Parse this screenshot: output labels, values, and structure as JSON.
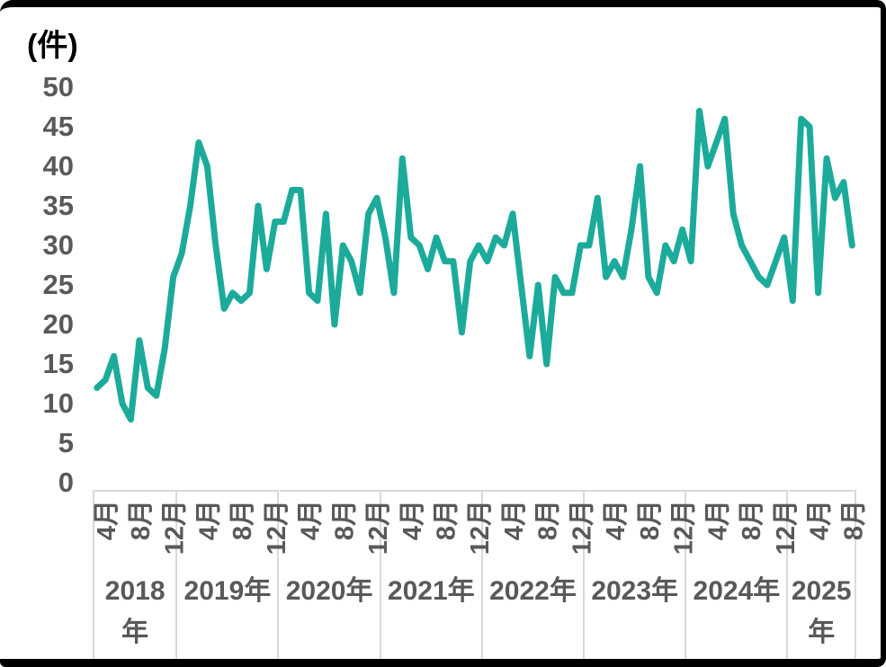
{
  "chart_data": {
    "type": "line",
    "title": "",
    "unit_label": "(件)",
    "legend": "none",
    "grid": "off",
    "y_axis": {
      "min": 0,
      "max": 50,
      "ticks": [
        0,
        5,
        10,
        15,
        20,
        25,
        30,
        35,
        40,
        45,
        50
      ]
    },
    "x_axis": {
      "interval": "monthly",
      "start": "2018年3月",
      "end": "2025年8月",
      "month_tick_labels": [
        {
          "label": "4月",
          "index": 1
        },
        {
          "label": "8月",
          "index": 5
        },
        {
          "label": "12月",
          "index": 9
        },
        {
          "label": "4月",
          "index": 13
        },
        {
          "label": "8月",
          "index": 17
        },
        {
          "label": "12月",
          "index": 21
        },
        {
          "label": "4月",
          "index": 25
        },
        {
          "label": "8月",
          "index": 29
        },
        {
          "label": "12月",
          "index": 33
        },
        {
          "label": "4月",
          "index": 37
        },
        {
          "label": "8月",
          "index": 41
        },
        {
          "label": "12月",
          "index": 45
        },
        {
          "label": "4月",
          "index": 49
        },
        {
          "label": "8月",
          "index": 53
        },
        {
          "label": "12月",
          "index": 57
        },
        {
          "label": "4月",
          "index": 61
        },
        {
          "label": "8月",
          "index": 65
        },
        {
          "label": "12月",
          "index": 69
        },
        {
          "label": "4月",
          "index": 73
        },
        {
          "label": "8月",
          "index": 77
        },
        {
          "label": "12月",
          "index": 81
        },
        {
          "label": "4月",
          "index": 85
        },
        {
          "label": "8月",
          "index": 89
        }
      ],
      "year_groups": [
        {
          "lines": [
            "2018",
            "年"
          ],
          "months": 10
        },
        {
          "lines": [
            "2019年"
          ],
          "months": 12
        },
        {
          "lines": [
            "2020年"
          ],
          "months": 12
        },
        {
          "lines": [
            "2021年"
          ],
          "months": 12
        },
        {
          "lines": [
            "2022年"
          ],
          "months": 12
        },
        {
          "lines": [
            "2023年"
          ],
          "months": 12
        },
        {
          "lines": [
            "2024年"
          ],
          "months": 12
        },
        {
          "lines": [
            "2025",
            "年"
          ],
          "months": 8
        }
      ]
    },
    "series": [
      {
        "color": "#1cab9b",
        "values": [
          12,
          13,
          16,
          10,
          8,
          18,
          12,
          11,
          17,
          26,
          29,
          35,
          43,
          40,
          30,
          22,
          24,
          23,
          24,
          35,
          27,
          33,
          33,
          37,
          37,
          24,
          23,
          34,
          20,
          30,
          28,
          24,
          34,
          36,
          31,
          24,
          41,
          31,
          30,
          27,
          31,
          28,
          28,
          19,
          28,
          30,
          28,
          31,
          30,
          34,
          25,
          16,
          25,
          15,
          26,
          24,
          24,
          30,
          30,
          36,
          26,
          28,
          26,
          32,
          40,
          26,
          24,
          30,
          28,
          32,
          28,
          47,
          40,
          43,
          46,
          34,
          30,
          28,
          26,
          25,
          28,
          31,
          23,
          46,
          45,
          24,
          41,
          36,
          38,
          30
        ]
      }
    ],
    "colors": {
      "line": "#1cab9b",
      "axis_text": "#595959",
      "cell_border": "#d9d9d9",
      "frame": "#000000",
      "background": "#ffffff"
    }
  }
}
